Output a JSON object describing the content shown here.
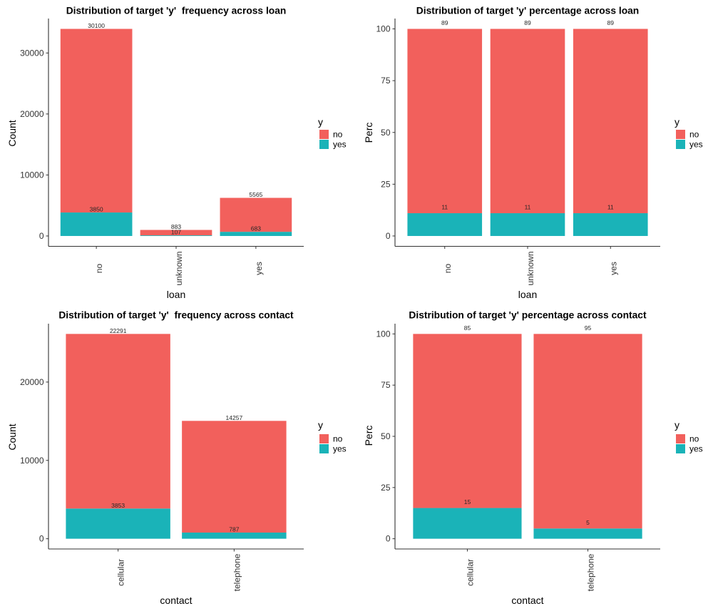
{
  "colors": {
    "no": "#F2605C",
    "yes": "#1AB3B8"
  },
  "chart_data": [
    {
      "type": "bar",
      "stacked": true,
      "title": "Distribution of target 'y'  frequency across loan",
      "xlabel": "loan",
      "ylabel": "Count",
      "categories": [
        "no",
        "unknown",
        "yes"
      ],
      "series": [
        {
          "name": "no",
          "values": [
            30100,
            883,
            5565
          ]
        },
        {
          "name": "yes",
          "values": [
            3850,
            107,
            683
          ]
        }
      ],
      "yticks": [
        0,
        10000,
        20000,
        30000
      ],
      "ylim": [
        -1697.5,
        35647.5
      ],
      "grid": false,
      "legend": {
        "title": "y",
        "entries": [
          "no",
          "yes"
        ],
        "position": "right"
      }
    },
    {
      "type": "bar",
      "stacked": true,
      "title": "Distribution of target 'y' percentage across loan",
      "xlabel": "loan",
      "ylabel": "Perc",
      "categories": [
        "no",
        "unknown",
        "yes"
      ],
      "series": [
        {
          "name": "no",
          "values": [
            89,
            89,
            89
          ]
        },
        {
          "name": "yes",
          "values": [
            11,
            11,
            11
          ]
        }
      ],
      "yticks": [
        0,
        25,
        50,
        75,
        100
      ],
      "ylim": [
        -5,
        105
      ],
      "grid": false,
      "legend": {
        "title": "y",
        "entries": [
          "no",
          "yes"
        ],
        "position": "right"
      }
    },
    {
      "type": "bar",
      "stacked": true,
      "title": "Distribution of target 'y'  frequency across contact",
      "xlabel": "contact",
      "ylabel": "Count",
      "categories": [
        "cellular",
        "telephone"
      ],
      "series": [
        {
          "name": "no",
          "values": [
            22291,
            14257
          ]
        },
        {
          "name": "yes",
          "values": [
            3853,
            787
          ]
        }
      ],
      "yticks": [
        0,
        10000,
        20000
      ],
      "ylim": [
        -1307.2,
        27451.2
      ],
      "grid": false,
      "legend": {
        "title": "y",
        "entries": [
          "no",
          "yes"
        ],
        "position": "right"
      }
    },
    {
      "type": "bar",
      "stacked": true,
      "title": "Distribution of target 'y' percentage across contact",
      "xlabel": "contact",
      "ylabel": "Perc",
      "categories": [
        "cellular",
        "telephone"
      ],
      "series": [
        {
          "name": "no",
          "values": [
            85,
            95
          ]
        },
        {
          "name": "yes",
          "values": [
            15,
            5
          ]
        }
      ],
      "yticks": [
        0,
        25,
        50,
        75,
        100
      ],
      "ylim": [
        -5,
        105
      ],
      "grid": false,
      "legend": {
        "title": "y",
        "entries": [
          "no",
          "yes"
        ],
        "position": "right"
      }
    }
  ]
}
